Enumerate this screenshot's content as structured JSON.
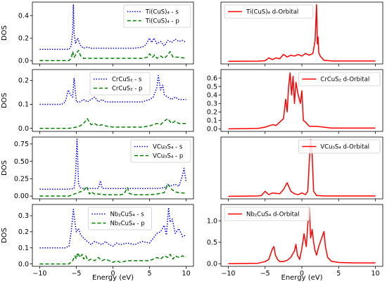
{
  "figure": {
    "xlabel": "Energy (eV)",
    "ylabel": "DOS"
  },
  "chart_data": [
    {
      "type": "line",
      "panel": "left",
      "row": 0,
      "xlim": [
        -11,
        11
      ],
      "ylim": [
        -0.03,
        0.52
      ],
      "xticks": [
        -10,
        -5,
        0,
        5,
        10
      ],
      "xtick_labels": [
        "",
        "",
        "",
        "",
        ""
      ],
      "yticks": [
        0.0,
        0.2,
        0.4
      ],
      "ytick_labels": [
        "0.0",
        "0.2",
        "0.4"
      ],
      "ylabel": "DOS",
      "xlabel": "",
      "legend": "top-right",
      "series": [
        {
          "name": "Ti(CuS)₄ - s",
          "color": "#0000ff",
          "style": "dotted",
          "x": [
            -10,
            -6.0,
            -5.7,
            -5.5,
            -5.4,
            -5.3,
            -5.1,
            -4.8,
            -4.5,
            -4.2,
            -4.0,
            -3.5,
            -3.0,
            -2.0,
            -1.0,
            0.0,
            1.0,
            2.0,
            3.0,
            4.0,
            4.5,
            5.0,
            5.3,
            5.6,
            6.0,
            6.5,
            7.0,
            7.5,
            8.0,
            8.5,
            9.0,
            9.5,
            10
          ],
          "y": [
            0.1,
            0.1,
            0.13,
            0.26,
            0.5,
            0.24,
            0.15,
            0.2,
            0.14,
            0.12,
            0.11,
            0.12,
            0.11,
            0.11,
            0.11,
            0.11,
            0.11,
            0.11,
            0.11,
            0.12,
            0.14,
            0.2,
            0.16,
            0.2,
            0.15,
            0.17,
            0.13,
            0.18,
            0.16,
            0.19,
            0.17,
            0.18,
            0.16
          ]
        },
        {
          "name": "Ti(CuS)₄ - p",
          "color": "#008000",
          "style": "dashed",
          "x": [
            -10,
            -6.0,
            -5.7,
            -5.5,
            -5.3,
            -5.0,
            -4.7,
            -4.4,
            -4.0,
            -3.0,
            -2.0,
            -1.0,
            0.0,
            1.0,
            2.0,
            3.0,
            4.0,
            4.7,
            5.0,
            5.4,
            5.7,
            6.0,
            6.5,
            7.0,
            7.5,
            7.8,
            8.2,
            9.0,
            10
          ],
          "y": [
            0.0,
            0.0,
            0.02,
            0.08,
            0.03,
            0.06,
            0.09,
            0.04,
            0.02,
            0.02,
            0.02,
            0.02,
            0.02,
            0.02,
            0.02,
            0.02,
            0.02,
            0.03,
            0.06,
            0.03,
            0.05,
            0.02,
            0.04,
            0.02,
            0.05,
            0.08,
            0.03,
            0.03,
            0.02
          ]
        }
      ]
    },
    {
      "type": "line",
      "panel": "right",
      "row": 0,
      "xlim": [
        -11,
        11
      ],
      "ylim": [
        -0.15,
        3.4
      ],
      "xticks": [
        -10,
        -5,
        0,
        5,
        10
      ],
      "xtick_labels": [
        "",
        "",
        "",
        "",
        ""
      ],
      "yticks": [],
      "ytick_labels": [],
      "xlabel": "",
      "legend": "top-left",
      "series": [
        {
          "name": "Ti(CuS)₄ d-Orbital",
          "color": "#ff0000",
          "style": "solid",
          "x": [
            -10,
            -6.0,
            -5.0,
            -4.5,
            -4.0,
            -3.5,
            -3.0,
            -2.5,
            -2.0,
            -1.5,
            -1.0,
            -0.5,
            0.0,
            0.5,
            1.0,
            1.5,
            1.8,
            2.0,
            2.1,
            2.2,
            2.3,
            2.5,
            3.0,
            4.0,
            6.0,
            8.0,
            10
          ],
          "y": [
            0.0,
            0.01,
            0.03,
            0.2,
            0.1,
            0.2,
            0.15,
            0.4,
            0.25,
            0.35,
            0.3,
            0.4,
            0.3,
            0.45,
            0.35,
            0.45,
            1.2,
            3.25,
            1.0,
            1.4,
            0.5,
            0.3,
            0.06,
            0.02,
            0.02,
            0.02,
            0.02
          ]
        }
      ]
    },
    {
      "type": "line",
      "panel": "left",
      "row": 1,
      "xlim": [
        -11,
        11
      ],
      "ylim": [
        -0.013,
        0.245
      ],
      "xticks": [
        -10,
        -5,
        0,
        5,
        10
      ],
      "xtick_labels": [
        "",
        "",
        "",
        "",
        ""
      ],
      "yticks": [
        0.0,
        0.1,
        0.2
      ],
      "ytick_labels": [
        "0.0",
        "0.1",
        "0.2"
      ],
      "ylabel": "DOS",
      "xlabel": "",
      "legend": "top-center",
      "series": [
        {
          "name": "CrCuS₂ - s",
          "color": "#0000ff",
          "style": "dotted",
          "x": [
            -10,
            -7.0,
            -6.5,
            -6.1,
            -5.8,
            -5.5,
            -5.3,
            -5.0,
            -4.5,
            -4.0,
            -3.5,
            -3.0,
            -2.5,
            -2.0,
            -1.5,
            -1.0,
            0.0,
            1.0,
            2.0,
            3.0,
            4.0,
            5.0,
            5.5,
            6.0,
            6.2,
            6.5,
            6.8,
            7.0,
            7.5,
            8.0,
            8.5,
            9.0,
            10
          ],
          "y": [
            0.1,
            0.1,
            0.11,
            0.16,
            0.14,
            0.13,
            0.21,
            0.11,
            0.11,
            0.12,
            0.11,
            0.12,
            0.13,
            0.11,
            0.12,
            0.11,
            0.11,
            0.11,
            0.11,
            0.11,
            0.11,
            0.12,
            0.13,
            0.17,
            0.22,
            0.16,
            0.18,
            0.14,
            0.13,
            0.12,
            0.13,
            0.12,
            0.12
          ]
        },
        {
          "name": "CrCuS₂ - p",
          "color": "#008000",
          "style": "dashed",
          "x": [
            -10,
            -6.0,
            -5.0,
            -4.5,
            -4.0,
            -3.5,
            -3.0,
            -2.5,
            -2.0,
            -1.5,
            -1.0,
            0.0,
            1.0,
            2.0,
            3.0,
            4.0,
            5.0,
            6.0,
            6.5,
            7.0,
            7.5,
            8.0,
            8.5,
            9.0,
            10
          ],
          "y": [
            0.0,
            0.0,
            0.005,
            0.01,
            0.02,
            0.04,
            0.015,
            0.02,
            0.01,
            0.015,
            0.01,
            0.005,
            0.005,
            0.005,
            0.005,
            0.005,
            0.01,
            0.02,
            0.015,
            0.03,
            0.04,
            0.02,
            0.03,
            0.02,
            0.02
          ]
        }
      ]
    },
    {
      "type": "line",
      "panel": "right",
      "row": 1,
      "xlim": [
        -11,
        11
      ],
      "ylim": [
        -0.03,
        0.7
      ],
      "xticks": [
        -10,
        -5,
        0,
        5,
        10
      ],
      "xtick_labels": [
        "",
        "",
        "",
        "",
        ""
      ],
      "yticks": [
        0.0,
        0.1,
        0.2,
        0.3,
        0.4,
        0.5,
        0.6
      ],
      "ytick_labels": [
        "0.0",
        "0.1",
        "0.2",
        "0.3",
        "0.4",
        "0.5",
        "0.6"
      ],
      "xlabel": "",
      "legend": "top-right",
      "series": [
        {
          "name": "CrCuS₂ d-Orbital",
          "color": "#ff0000",
          "style": "solid",
          "x": [
            -10,
            -6.0,
            -5.0,
            -4.0,
            -3.5,
            -3.0,
            -2.5,
            -2.2,
            -2.0,
            -1.8,
            -1.6,
            -1.4,
            -1.2,
            -1.0,
            -0.8,
            -0.5,
            -0.2,
            0.0,
            0.2,
            0.5,
            1.0,
            2.0,
            3.0,
            4.0,
            6.0,
            8.0,
            10
          ],
          "y": [
            0.0,
            0.005,
            0.02,
            0.05,
            0.04,
            0.08,
            0.12,
            0.35,
            0.2,
            0.5,
            0.66,
            0.4,
            0.62,
            0.3,
            0.55,
            0.4,
            0.3,
            0.45,
            0.1,
            0.08,
            0.03,
            0.03,
            0.02,
            0.01,
            0.01,
            0.01,
            0.01
          ]
        }
      ]
    },
    {
      "type": "line",
      "panel": "left",
      "row": 2,
      "xlim": [
        -11,
        11
      ],
      "ylim": [
        -0.04,
        0.85
      ],
      "xticks": [
        -10,
        -5,
        0,
        5,
        10
      ],
      "xtick_labels": [
        "",
        "",
        "",
        "",
        ""
      ],
      "yticks": [
        0.0,
        0.25,
        0.5,
        0.75
      ],
      "ytick_labels": [
        "0.00",
        "0.25",
        "0.50",
        "0.75"
      ],
      "ylabel": "DOS",
      "xlabel": "",
      "legend": "top-right",
      "series": [
        {
          "name": "VCu₃S₄ - s",
          "color": "#0000ff",
          "style": "dotted",
          "x": [
            -10,
            -6.0,
            -5.3,
            -5.1,
            -4.9,
            -4.7,
            -4.5,
            -4.0,
            -3.0,
            -2.0,
            -1.7,
            -1.5,
            -1.3,
            -1.0,
            0.0,
            1.0,
            2.0,
            3.0,
            4.0,
            5.0,
            6.0,
            7.0,
            7.5,
            8.0,
            8.5,
            9.0,
            9.5,
            9.7,
            10
          ],
          "y": [
            0.1,
            0.1,
            0.11,
            0.3,
            0.82,
            0.18,
            0.12,
            0.11,
            0.11,
            0.11,
            0.22,
            0.12,
            0.11,
            0.11,
            0.11,
            0.11,
            0.11,
            0.11,
            0.11,
            0.11,
            0.11,
            0.12,
            0.16,
            0.15,
            0.17,
            0.14,
            0.3,
            0.4,
            0.2
          ]
        },
        {
          "name": "VCu₃S₄ - p",
          "color": "#008000",
          "style": "dashed",
          "x": [
            -10,
            -6.0,
            -5.5,
            -5.0,
            -4.5,
            -4.0,
            -3.6,
            -3.2,
            -3.0,
            -2.5,
            -2.0,
            -1.0,
            0.0,
            1.0,
            1.5,
            2.0,
            2.2,
            2.5,
            3.0,
            4.0,
            5.0,
            6.0,
            7.0,
            7.5,
            8.0,
            8.5,
            9.0,
            10
          ],
          "y": [
            0.0,
            0.0,
            0.02,
            0.04,
            0.06,
            0.08,
            0.14,
            0.03,
            0.06,
            0.03,
            0.03,
            0.02,
            0.02,
            0.02,
            0.03,
            0.12,
            0.04,
            0.03,
            0.02,
            0.02,
            0.02,
            0.03,
            0.05,
            0.17,
            0.1,
            0.06,
            0.05,
            0.04
          ]
        }
      ]
    },
    {
      "type": "line",
      "panel": "right",
      "row": 2,
      "xlim": [
        -11,
        11
      ],
      "ylim": [
        -0.15,
        3.5
      ],
      "xticks": [
        -10,
        -5,
        0,
        5,
        10
      ],
      "xtick_labels": [
        "",
        "",
        "",
        "",
        ""
      ],
      "yticks": [],
      "ytick_labels": [],
      "xlabel": "",
      "legend": "top-right",
      "series": [
        {
          "name": "VCu₃S₄ d-Orbital",
          "color": "#ff0000",
          "style": "solid",
          "x": [
            -10,
            -6.0,
            -5.5,
            -5.0,
            -4.5,
            -4.0,
            -3.0,
            -2.5,
            -2.0,
            -1.8,
            -1.5,
            -1.0,
            -0.5,
            0.0,
            0.5,
            0.8,
            1.0,
            1.2,
            1.4,
            1.6,
            2.0,
            3.0,
            4.0,
            6.0,
            8.0,
            10
          ],
          "y": [
            0.0,
            0.02,
            0.05,
            0.3,
            0.1,
            0.2,
            0.15,
            0.4,
            0.8,
            0.6,
            0.3,
            0.15,
            0.1,
            0.2,
            0.1,
            0.3,
            2.0,
            3.35,
            2.5,
            0.3,
            0.05,
            0.02,
            0.02,
            0.02,
            0.02,
            0.02
          ]
        }
      ]
    },
    {
      "type": "line",
      "panel": "left",
      "row": 3,
      "xlim": [
        -11,
        11
      ],
      "ylim": [
        -0.015,
        0.37
      ],
      "xticks": [
        -10,
        -5,
        0,
        5,
        10
      ],
      "xtick_labels": [
        "−10",
        "−5",
        "0",
        "5",
        "10"
      ],
      "yticks": [
        0.0,
        0.1,
        0.2,
        0.3
      ],
      "ytick_labels": [
        "0.0",
        "0.1",
        "0.2",
        "0.3"
      ],
      "ylabel": "DOS",
      "xlabel": "Energy (eV)",
      "legend": "top-center",
      "series": [
        {
          "name": "Nb₂CuS₄ - s",
          "color": "#0000ff",
          "style": "dotted",
          "x": [
            -10,
            -6.5,
            -6.0,
            -5.7,
            -5.4,
            -5.2,
            -5.0,
            -4.7,
            -4.4,
            -4.0,
            -3.5,
            -3.0,
            -2.5,
            -2.0,
            -1.5,
            -1.0,
            -0.5,
            0.0,
            0.5,
            1.0,
            2.0,
            3.0,
            4.0,
            5.0,
            5.5,
            6.0,
            6.5,
            7.0,
            7.3,
            7.6,
            7.8,
            8.1,
            8.5,
            9.0,
            9.5,
            10
          ],
          "y": [
            0.1,
            0.1,
            0.11,
            0.2,
            0.34,
            0.26,
            0.2,
            0.22,
            0.18,
            0.16,
            0.14,
            0.12,
            0.14,
            0.13,
            0.12,
            0.14,
            0.12,
            0.11,
            0.13,
            0.12,
            0.13,
            0.12,
            0.14,
            0.13,
            0.16,
            0.19,
            0.2,
            0.24,
            0.18,
            0.35,
            0.26,
            0.28,
            0.19,
            0.22,
            0.17,
            0.18
          ]
        },
        {
          "name": "Nb₂CuS₄ - p",
          "color": "#008000",
          "style": "dashed",
          "x": [
            -10,
            -6.0,
            -5.5,
            -5.2,
            -5.0,
            -4.8,
            -4.5,
            -4.2,
            -4.0,
            -3.7,
            -3.4,
            -3.0,
            -2.5,
            -2.0,
            -1.5,
            -1.0,
            -0.5,
            0.0,
            0.5,
            1.0,
            2.0,
            3.0,
            4.0,
            5.0,
            5.5,
            6.0,
            6.5,
            7.0,
            7.5,
            7.8,
            8.2,
            8.5,
            9.0,
            9.5,
            10
          ],
          "y": [
            0.0,
            0.0,
            0.02,
            0.05,
            0.03,
            0.07,
            0.04,
            0.06,
            0.03,
            0.05,
            0.02,
            0.03,
            0.02,
            0.04,
            0.02,
            0.03,
            0.02,
            0.01,
            0.02,
            0.01,
            0.02,
            0.02,
            0.02,
            0.02,
            0.03,
            0.04,
            0.03,
            0.05,
            0.04,
            0.06,
            0.03,
            0.05,
            0.04,
            0.05,
            0.04
          ]
        }
      ]
    },
    {
      "type": "line",
      "panel": "right",
      "row": 3,
      "xlim": [
        -11,
        11
      ],
      "ylim": [
        -0.06,
        1.38
      ],
      "xticks": [
        -10,
        -5,
        0,
        5,
        10
      ],
      "xtick_labels": [
        "−10",
        "−5",
        "0",
        "5",
        "10"
      ],
      "yticks": [
        0.0,
        0.5,
        1.0
      ],
      "ytick_labels": [
        "0.0",
        "0.5",
        "1.0"
      ],
      "xlabel": "Energy (eV)",
      "legend": "top-left",
      "series": [
        {
          "name": "Nb₂CuS₄ d-Orbital",
          "color": "#ff0000",
          "style": "solid",
          "x": [
            -10,
            -6.0,
            -5.0,
            -4.5,
            -4.0,
            -3.8,
            -3.6,
            -3.3,
            -3.0,
            -2.5,
            -2.0,
            -1.5,
            -1.0,
            -0.8,
            -0.6,
            -0.3,
            0.0,
            0.3,
            0.6,
            0.8,
            1.0,
            1.2,
            1.4,
            1.6,
            1.8,
            2.0,
            2.3,
            2.7,
            3.0,
            3.2,
            3.5,
            4.0,
            5.0,
            7.0,
            10
          ],
          "y": [
            0.0,
            0.01,
            0.05,
            0.1,
            0.35,
            0.4,
            0.2,
            0.1,
            0.05,
            0.05,
            0.08,
            0.15,
            0.3,
            0.45,
            0.2,
            0.1,
            0.35,
            0.7,
            0.4,
            0.9,
            1.3,
            0.6,
            0.8,
            0.5,
            0.3,
            0.2,
            0.4,
            0.6,
            0.75,
            0.4,
            0.15,
            0.06,
            0.03,
            0.02,
            0.02
          ]
        }
      ]
    }
  ]
}
